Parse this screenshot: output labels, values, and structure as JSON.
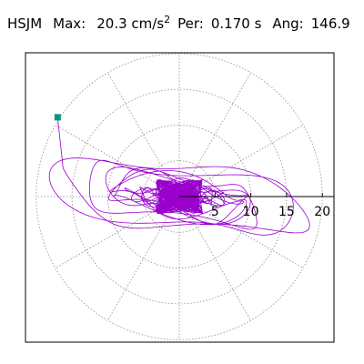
{
  "header": {
    "station": "HSJM",
    "max_label": "Max:",
    "max_value": "20.3 cm/s",
    "max_exp": "2",
    "per_label": "Per:",
    "per_value": "0.170 s",
    "ang_label": "Ang:",
    "ang_value": "146.9"
  },
  "chart_data": {
    "type": "line",
    "subtype": "polar-hodogram",
    "radial_ticks": [
      5,
      10,
      15,
      20
    ],
    "radial_tick_labels": [
      "5",
      "10",
      "15",
      "20"
    ],
    "rmax": 20.3,
    "spoke_angles_deg": [
      0,
      30,
      60,
      90,
      120,
      150,
      180,
      210,
      240,
      270,
      300,
      330
    ],
    "grid": true,
    "colors": {
      "trace": "#9900cc",
      "marker": "#009980",
      "grid": "#8c8c8c",
      "axis": "#000000",
      "frame": "#000000"
    },
    "max_point": {
      "amplitude": 20.3,
      "angle_deg": 146.9
    },
    "trace_description_units": "cm/s^2"
  }
}
